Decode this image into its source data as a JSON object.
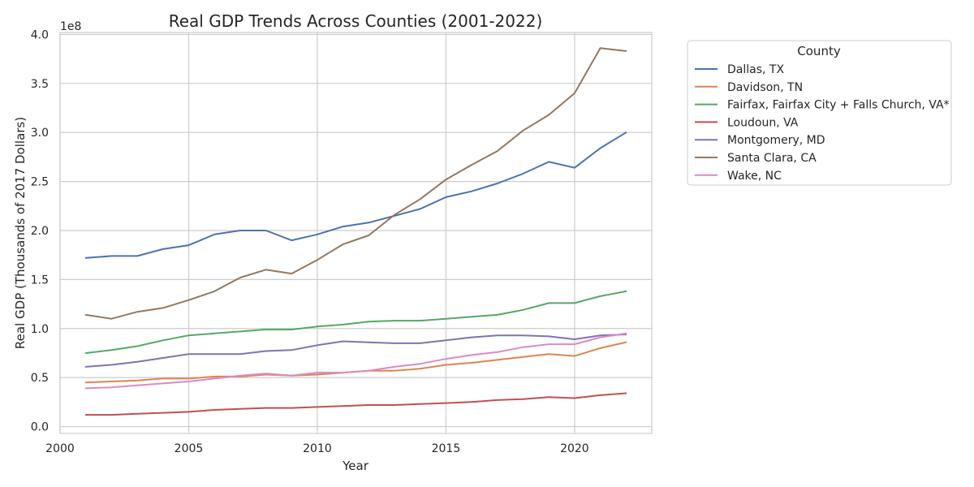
{
  "chart_data": {
    "type": "line",
    "title": "Real GDP Trends Across Counties (2001-2022)",
    "xlabel": "Year",
    "ylabel": "Real GDP (Thousands of 2017 Dollars)",
    "y_scale_label": "1e8",
    "xlim": [
      2000,
      2023
    ],
    "ylim": [
      -0.07,
      4.02
    ],
    "xticks": [
      2000,
      2005,
      2010,
      2015,
      2020
    ],
    "yticks": [
      0.0,
      0.5,
      1.0,
      1.5,
      2.0,
      2.5,
      3.0,
      3.5,
      4.0
    ],
    "ytick_labels": [
      "0.0",
      "0.5",
      "1.0",
      "1.5",
      "2.0",
      "2.5",
      "3.0",
      "3.5",
      "4.0"
    ],
    "grid": true,
    "legend": {
      "title": "County",
      "placement": "outside-right"
    },
    "x": [
      2001,
      2002,
      2003,
      2004,
      2005,
      2006,
      2007,
      2008,
      2009,
      2010,
      2011,
      2012,
      2013,
      2014,
      2015,
      2016,
      2017,
      2018,
      2019,
      2020,
      2021,
      2022
    ],
    "series": [
      {
        "name": "Dallas, TX",
        "color": "#4c72b0",
        "values": [
          1.72,
          1.74,
          1.74,
          1.81,
          1.85,
          1.96,
          2.0,
          2.0,
          1.9,
          1.96,
          2.04,
          2.08,
          2.15,
          2.22,
          2.34,
          2.4,
          2.48,
          2.58,
          2.7,
          2.64,
          2.84,
          3.0
        ]
      },
      {
        "name": "Davidson, TN",
        "color": "#dd8452",
        "values": [
          0.45,
          0.46,
          0.47,
          0.49,
          0.49,
          0.51,
          0.51,
          0.53,
          0.52,
          0.53,
          0.55,
          0.57,
          0.57,
          0.59,
          0.63,
          0.65,
          0.68,
          0.71,
          0.74,
          0.72,
          0.8,
          0.86
        ]
      },
      {
        "name": "Fairfax, Fairfax City + Falls Church, VA*",
        "color": "#55a868",
        "values": [
          0.75,
          0.78,
          0.82,
          0.88,
          0.93,
          0.95,
          0.97,
          0.99,
          0.99,
          1.02,
          1.04,
          1.07,
          1.08,
          1.08,
          1.1,
          1.12,
          1.14,
          1.19,
          1.26,
          1.26,
          1.33,
          1.38
        ]
      },
      {
        "name": "Loudoun, VA",
        "color": "#c44e52",
        "values": [
          0.12,
          0.12,
          0.13,
          0.14,
          0.15,
          0.17,
          0.18,
          0.19,
          0.19,
          0.2,
          0.21,
          0.22,
          0.22,
          0.23,
          0.24,
          0.25,
          0.27,
          0.28,
          0.3,
          0.29,
          0.32,
          0.34
        ]
      },
      {
        "name": "Montgomery, MD",
        "color": "#8172b3",
        "values": [
          0.61,
          0.63,
          0.66,
          0.7,
          0.74,
          0.74,
          0.74,
          0.77,
          0.78,
          0.83,
          0.87,
          0.86,
          0.85,
          0.85,
          0.88,
          0.91,
          0.93,
          0.93,
          0.92,
          0.89,
          0.93,
          0.94
        ]
      },
      {
        "name": "Santa Clara, CA",
        "color": "#937860",
        "values": [
          1.14,
          1.1,
          1.17,
          1.21,
          1.29,
          1.38,
          1.52,
          1.6,
          1.56,
          1.7,
          1.86,
          1.95,
          2.16,
          2.32,
          2.52,
          2.67,
          2.81,
          3.02,
          3.18,
          3.4,
          3.86,
          3.83
        ]
      },
      {
        "name": "Wake, NC",
        "color": "#da8bc3",
        "values": [
          0.39,
          0.4,
          0.42,
          0.44,
          0.46,
          0.49,
          0.52,
          0.54,
          0.52,
          0.55,
          0.55,
          0.57,
          0.61,
          0.64,
          0.69,
          0.73,
          0.76,
          0.81,
          0.84,
          0.84,
          0.91,
          0.95
        ]
      }
    ]
  }
}
